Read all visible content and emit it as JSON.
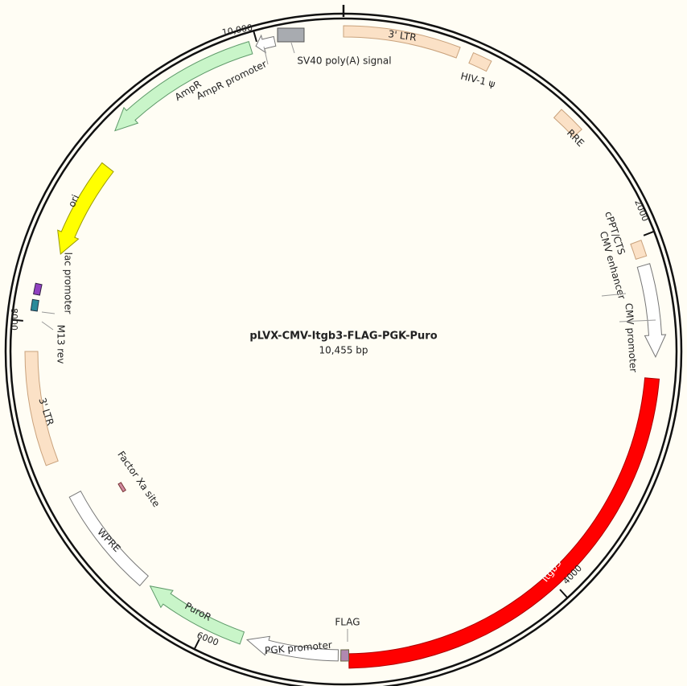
{
  "map": {
    "title": "pLVX-CMV-Itgb3-FLAG-PGK-Puro",
    "length": {
      "value": 10455,
      "label": "10,455 bp"
    },
    "ticks": [
      2000,
      4000,
      6000,
      8000,
      {
        "value": 10000,
        "label": "10,000"
      }
    ],
    "features": [
      "3' LTR",
      "HIV-1 ψ",
      "RRE",
      "cPPT/CTS",
      "CMV enhancer",
      "CMV promoter",
      "Itgb3",
      "FLAG",
      "PGK promoter",
      "PuroR",
      "WPRE",
      "Factor Xa site",
      "3' LTR",
      "lac promoter",
      "M13 rev",
      "ori",
      "AmpR",
      "AmpR promoter",
      "SV40 poly(A) signal"
    ]
  }
}
